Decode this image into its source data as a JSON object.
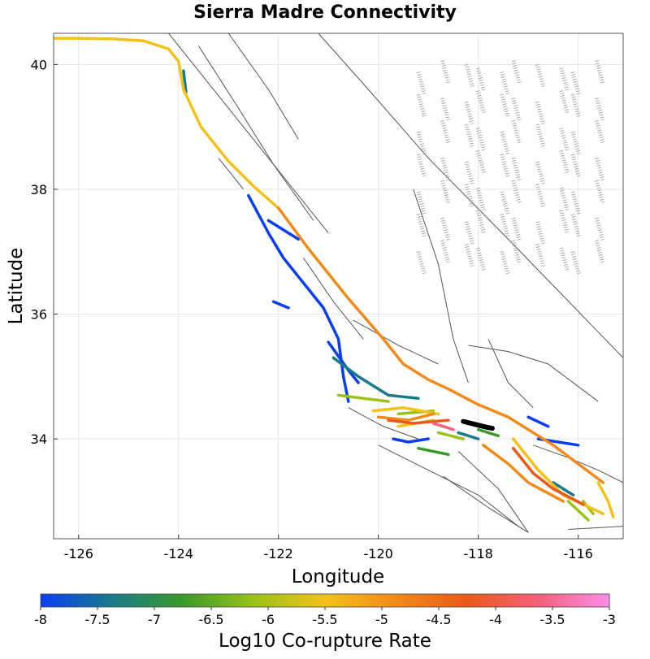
{
  "chart_data": {
    "type": "line",
    "title": "Sierra Madre Connectivity",
    "xlabel": "Longitude",
    "ylabel": "Latitude",
    "xlim": [
      -126.5,
      -115.1
    ],
    "ylim": [
      32.4,
      40.5
    ],
    "xticks": [
      -126,
      -124,
      -122,
      -120,
      -118,
      -116
    ],
    "yticks": [
      34,
      36,
      38,
      40
    ],
    "grid": true,
    "colorbar": {
      "label": "Log10 Co-rupture Rate",
      "range": [
        -8,
        -3
      ],
      "ticks": [
        -8,
        -7.5,
        -7,
        -6.5,
        -6,
        -5.5,
        -5,
        -4.5,
        -4,
        -3.5,
        -3
      ],
      "tick_labels": [
        "-8",
        "-7.5",
        "-7",
        "-6.5",
        "-6",
        "-5.5",
        "-5",
        "-4.5",
        "-4",
        "-3.5",
        "-3"
      ],
      "colors": [
        "#0a3ff0",
        "#1a7a8a",
        "#3a9a2a",
        "#9ac21a",
        "#f2c21a",
        "#f28a1a",
        "#e85a1a",
        "#f5607a",
        "#fa8ee8"
      ]
    },
    "source_fault": {
      "name": "Sierra Madre",
      "color": "#000000",
      "points": [
        [
          -118.3,
          34.28
        ],
        [
          -118.1,
          34.24
        ],
        [
          -117.85,
          34.19
        ],
        [
          -117.72,
          34.17
        ]
      ]
    },
    "series": [
      {
        "rate": -5.4,
        "points": [
          [
            -126.5,
            40.42
          ],
          [
            -126.0,
            40.42
          ],
          [
            -125.3,
            40.41
          ],
          [
            -124.7,
            40.38
          ],
          [
            -124.2,
            40.25
          ],
          [
            -124.0,
            40.05
          ],
          [
            -123.9,
            39.6
          ],
          [
            -123.55,
            39.0
          ],
          [
            -123.0,
            38.45
          ],
          [
            -122.5,
            38.05
          ],
          [
            -122.0,
            37.7
          ]
        ]
      },
      {
        "rate": -4.8,
        "points": [
          [
            -122.0,
            37.7
          ],
          [
            -121.4,
            37.05
          ],
          [
            -120.6,
            36.25
          ],
          [
            -119.9,
            35.6
          ],
          [
            -119.5,
            35.2
          ],
          [
            -119.0,
            34.95
          ],
          [
            -118.6,
            34.8
          ],
          [
            -118.0,
            34.55
          ],
          [
            -117.4,
            34.35
          ],
          [
            -116.9,
            34.1
          ],
          [
            -116.5,
            33.9
          ],
          [
            -116.0,
            33.6
          ],
          [
            -115.5,
            33.3
          ]
        ]
      },
      {
        "rate": -7.9,
        "points": [
          [
            -122.6,
            37.9
          ],
          [
            -122.4,
            37.6
          ],
          [
            -122.2,
            37.3
          ],
          [
            -121.9,
            36.9
          ],
          [
            -121.5,
            36.5
          ],
          [
            -121.1,
            36.1
          ],
          [
            -120.8,
            35.6
          ],
          [
            -120.7,
            35.0
          ],
          [
            -120.6,
            34.6
          ]
        ]
      },
      {
        "rate": -7.9,
        "points": [
          [
            -122.2,
            37.5
          ],
          [
            -121.8,
            37.3
          ],
          [
            -121.6,
            37.2
          ]
        ]
      },
      {
        "rate": -7.9,
        "points": [
          [
            -122.1,
            36.2
          ],
          [
            -121.8,
            36.1
          ]
        ]
      },
      {
        "rate": -7.9,
        "points": [
          [
            -121.0,
            35.55
          ],
          [
            -120.6,
            35.1
          ],
          [
            -120.4,
            34.9
          ]
        ]
      },
      {
        "rate": -7.9,
        "points": [
          [
            -117.0,
            34.35
          ],
          [
            -116.6,
            34.2
          ]
        ]
      },
      {
        "rate": -7.9,
        "points": [
          [
            -119.7,
            34.0
          ],
          [
            -119.4,
            33.95
          ],
          [
            -119.0,
            34.0
          ]
        ]
      },
      {
        "rate": -7.9,
        "points": [
          [
            -116.8,
            34.0
          ],
          [
            -116.0,
            33.9
          ]
        ]
      },
      {
        "rate": -7.4,
        "points": [
          [
            -123.9,
            39.9
          ],
          [
            -123.85,
            39.55
          ]
        ]
      },
      {
        "rate": -7.3,
        "points": [
          [
            -120.9,
            35.3
          ],
          [
            -120.4,
            35.0
          ],
          [
            -119.8,
            34.7
          ],
          [
            -119.2,
            34.65
          ]
        ]
      },
      {
        "rate": -7.3,
        "points": [
          [
            -118.4,
            34.1
          ],
          [
            -118.0,
            34.0
          ]
        ]
      },
      {
        "rate": -7.3,
        "points": [
          [
            -116.5,
            33.3
          ],
          [
            -116.1,
            33.1
          ]
        ]
      },
      {
        "rate": -6.9,
        "points": [
          [
            -119.2,
            33.85
          ],
          [
            -118.6,
            33.75
          ]
        ]
      },
      {
        "rate": -6.9,
        "points": [
          [
            -118.0,
            34.15
          ],
          [
            -117.6,
            34.05
          ]
        ]
      },
      {
        "rate": -6.1,
        "points": [
          [
            -120.8,
            34.7
          ],
          [
            -120.3,
            34.65
          ],
          [
            -119.8,
            34.6
          ]
        ]
      },
      {
        "rate": -6.1,
        "points": [
          [
            -119.6,
            34.4
          ],
          [
            -118.9,
            34.45
          ]
        ]
      },
      {
        "rate": -6.1,
        "points": [
          [
            -118.8,
            34.1
          ],
          [
            -118.3,
            34.0
          ]
        ]
      },
      {
        "rate": -6.1,
        "points": [
          [
            -116.2,
            33.0
          ],
          [
            -115.8,
            32.7
          ]
        ]
      },
      {
        "rate": -6.1,
        "points": [
          [
            -115.9,
            33.0
          ],
          [
            -115.7,
            32.8
          ]
        ]
      },
      {
        "rate": -5.4,
        "points": [
          [
            -120.1,
            34.45
          ],
          [
            -119.5,
            34.5
          ],
          [
            -118.8,
            34.4
          ]
        ]
      },
      {
        "rate": -5.4,
        "points": [
          [
            -119.6,
            34.2
          ],
          [
            -118.9,
            34.3
          ]
        ]
      },
      {
        "rate": -5.4,
        "points": [
          [
            -117.3,
            34.0
          ],
          [
            -116.8,
            33.5
          ],
          [
            -116.3,
            33.1
          ],
          [
            -115.5,
            32.8
          ]
        ]
      },
      {
        "rate": -5.4,
        "points": [
          [
            -115.6,
            33.3
          ],
          [
            -115.4,
            33.0
          ],
          [
            -115.3,
            32.75
          ]
        ]
      },
      {
        "rate": -4.8,
        "points": [
          [
            -120.0,
            34.35
          ],
          [
            -119.4,
            34.3
          ],
          [
            -118.9,
            34.4
          ]
        ]
      },
      {
        "rate": -4.8,
        "points": [
          [
            -117.9,
            33.9
          ],
          [
            -117.4,
            33.6
          ],
          [
            -117.0,
            33.3
          ],
          [
            -116.3,
            33.0
          ]
        ]
      },
      {
        "rate": -4.2,
        "points": [
          [
            -119.8,
            34.3
          ],
          [
            -119.3,
            34.25
          ],
          [
            -118.6,
            34.3
          ]
        ]
      },
      {
        "rate": -4.2,
        "points": [
          [
            -117.3,
            33.85
          ],
          [
            -116.9,
            33.45
          ],
          [
            -116.5,
            33.2
          ],
          [
            -115.9,
            32.95
          ]
        ]
      },
      {
        "rate": -3.7,
        "points": [
          [
            -118.9,
            34.25
          ],
          [
            -118.5,
            34.15
          ]
        ]
      }
    ]
  },
  "colorbar_label": "Log10 Co-rupture Rate"
}
